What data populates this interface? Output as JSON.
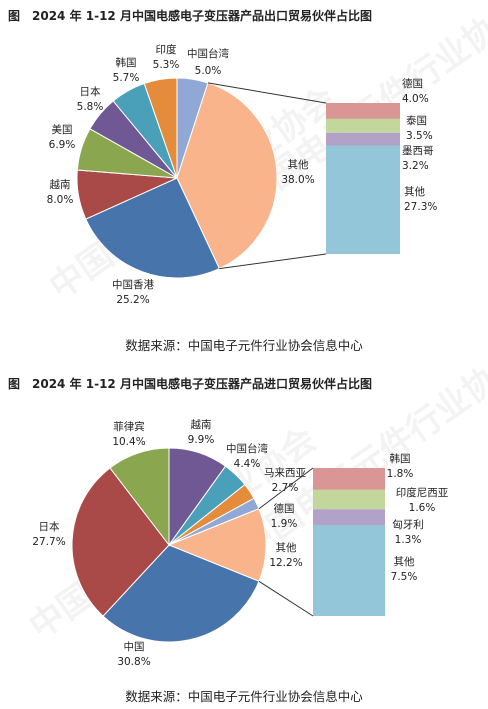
{
  "watermark": "中国电子元件行业协会",
  "chart_data": [
    {
      "type": "pie",
      "title": "图　2024 年 1-12 月中国电感电子变压器产品出口贸易伙伴占比图",
      "source": "数据来源：中国电子元件行业协会信息中心",
      "unit": "%",
      "slices": [
        {
          "name": "中国台湾",
          "value": 5.0,
          "color": "#8fa8d6"
        },
        {
          "name": "其他",
          "value": 38.0,
          "color": "#f9b48c"
        },
        {
          "name": "中国香港",
          "value": 25.2,
          "color": "#4674ab"
        },
        {
          "name": "越南",
          "value": 8.0,
          "color": "#a94a48"
        },
        {
          "name": "美国",
          "value": 6.9,
          "color": "#8aa64f"
        },
        {
          "name": "日本",
          "value": 5.8,
          "color": "#6f5893"
        },
        {
          "name": "韩国",
          "value": 5.7,
          "color": "#4aa0b8"
        },
        {
          "name": "印度",
          "value": 5.3,
          "color": "#e58c3c"
        }
      ],
      "breakdown": {
        "of": "其他",
        "items": [
          {
            "name": "德国",
            "value": 4.0,
            "color": "#d99694"
          },
          {
            "name": "泰国",
            "value": 3.5,
            "color": "#c3d69b"
          },
          {
            "name": "墨西哥",
            "value": 3.2,
            "color": "#b3a2c7"
          },
          {
            "name": "其他",
            "value": 27.3,
            "color": "#93c6d9"
          }
        ]
      }
    },
    {
      "type": "pie",
      "title": "图　2024 年 1-12 月中国电感电子变压器产品进口贸易伙伴占比图",
      "source": "数据来源：中国电子元件行业协会信息中心",
      "unit": "%",
      "slices": [
        {
          "name": "越南",
          "value": 9.9,
          "color": "#6f5893"
        },
        {
          "name": "中国台湾",
          "value": 4.4,
          "color": "#4aa0b8"
        },
        {
          "name": "马来西亚",
          "value": 2.7,
          "color": "#e58c3c"
        },
        {
          "name": "德国",
          "value": 1.9,
          "color": "#8fa8d6"
        },
        {
          "name": "其他",
          "value": 12.2,
          "color": "#f9b48c"
        },
        {
          "name": "中国",
          "value": 30.8,
          "color": "#4674ab"
        },
        {
          "name": "日本",
          "value": 27.7,
          "color": "#a94a48"
        },
        {
          "name": "菲律宾",
          "value": 10.4,
          "color": "#8aa64f"
        }
      ],
      "breakdown": {
        "of": "其他",
        "items": [
          {
            "name": "韩国",
            "value": 1.8,
            "color": "#d99694"
          },
          {
            "name": "印度尼西亚",
            "value": 1.6,
            "color": "#c3d69b"
          },
          {
            "name": "匈牙利",
            "value": 1.3,
            "color": "#b3a2c7"
          },
          {
            "name": "其他",
            "value": 7.5,
            "color": "#93c6d9"
          }
        ]
      }
    }
  ]
}
